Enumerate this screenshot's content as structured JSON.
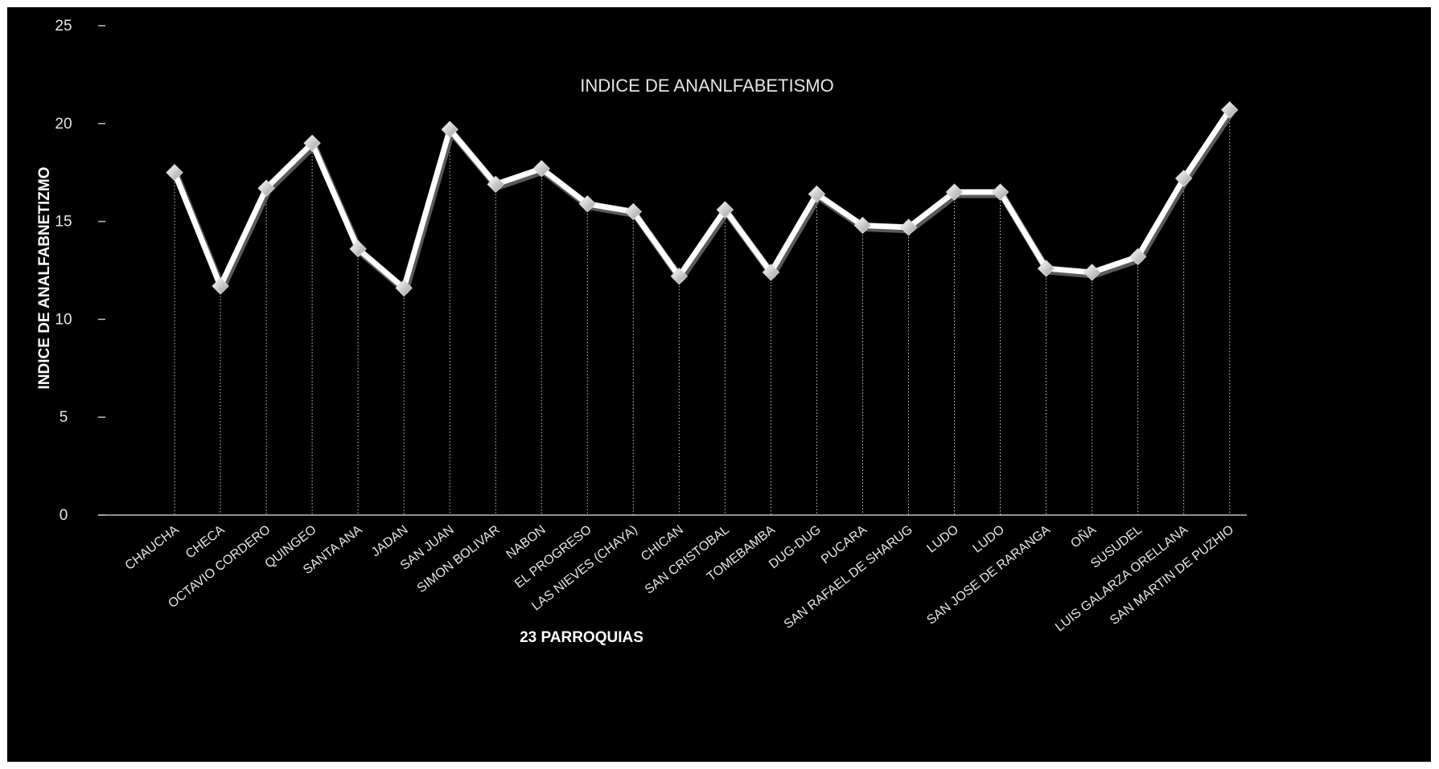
{
  "chart_data": {
    "type": "line",
    "title": "INDICE DE ANANLFABETISMO",
    "xlabel": "23 PARROQUIAS",
    "ylabel": "INDICE DE ANALFABNETIZMO",
    "ylim": [
      0,
      25
    ],
    "yticks": [
      "0",
      "5",
      "10",
      "15",
      "20",
      "25"
    ],
    "categories": [
      "CHAUCHA",
      "CHECA",
      "OCTAVIO CORDERO",
      "QUINGEO",
      "SANTA ANA",
      "JADAN",
      "SAN JUAN",
      "SIMON BOLIVAR",
      "NABON",
      "EL PROGRESO",
      "LAS NIEVES (CHAYA)",
      "CHICAN",
      "SAN CRISTOBAL",
      "TOMEBAMBA",
      "DUG-DUG",
      "PUCARA",
      "SAN RAFAEL DE SHARUG",
      "LUDO",
      "LUDO",
      "SAN JOSE DE RARANGA",
      "OÑA",
      "SUSUDEL",
      "LUIS GALARZA ORELLANA",
      "SAN MARTIN DE PUZHIO"
    ],
    "series": [
      {
        "values": [
          17.5,
          11.7,
          16.7,
          19.0,
          13.6,
          11.6,
          19.7,
          16.9,
          17.7,
          15.9,
          15.5,
          12.2,
          15.6,
          12.4,
          16.4,
          14.8,
          14.7,
          16.5,
          16.5,
          12.6,
          12.4,
          13.2,
          17.2,
          20.7
        ]
      }
    ],
    "grid": false,
    "drop_lines": true,
    "legend": "none",
    "colors": {
      "background": "#000000",
      "line": "#ffffff",
      "marker": "#f0f0f0",
      "axis": "#bfbfbf"
    }
  }
}
